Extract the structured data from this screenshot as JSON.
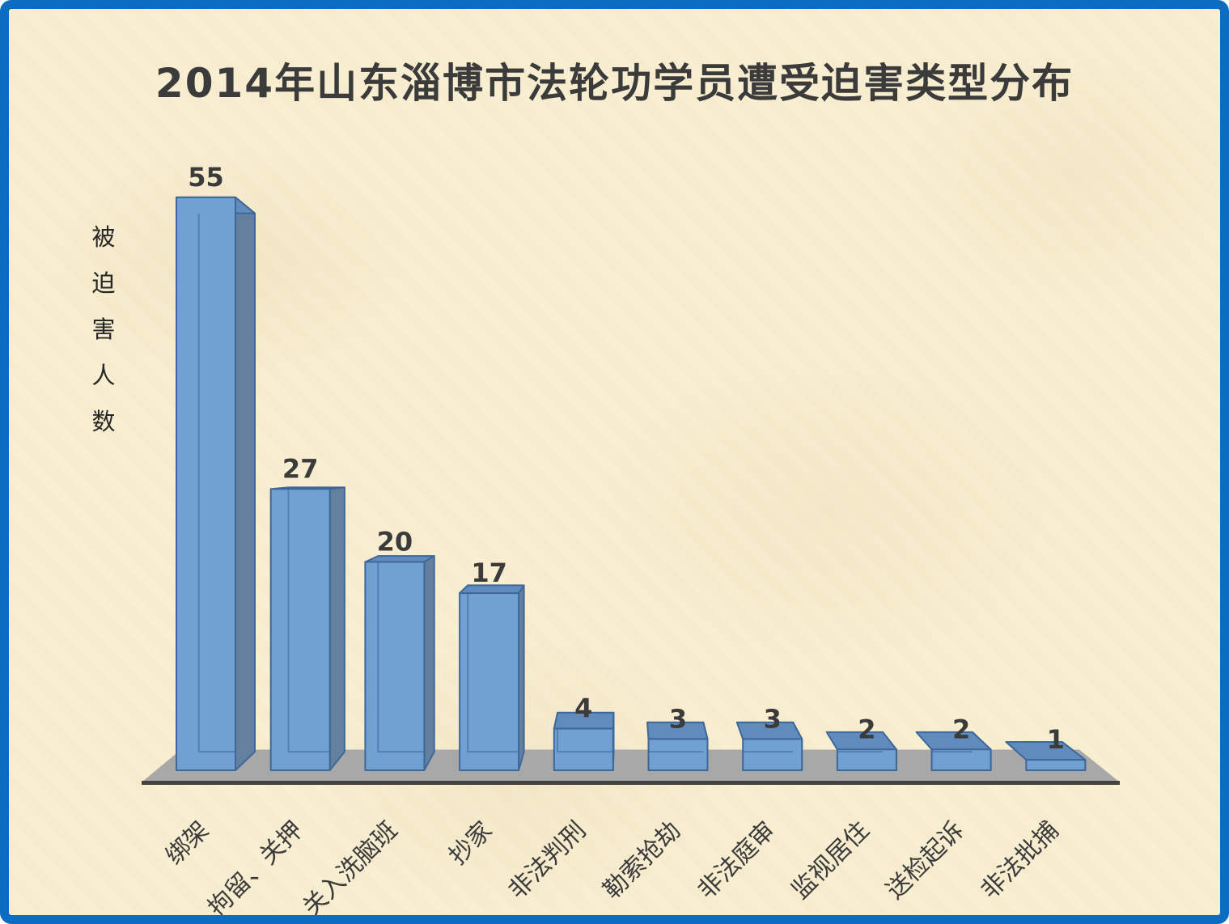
{
  "title": "2014年山东淄博市法轮功学员遭受迫害类型分布",
  "chart_data": {
    "type": "bar",
    "style": "3d-perspective-column",
    "title": "2014年山东淄博市法轮功学员遭受迫害类型分布",
    "ylabel": "被迫害人数",
    "xlabel": "",
    "categories": [
      "绑架",
      "拘留、关押",
      "关入洗脑班",
      "抄家",
      "非法判刑",
      "勒索抢劫",
      "非法庭审",
      "监视居住",
      "送检起诉",
      "非法批捕"
    ],
    "values": [
      55,
      27,
      20,
      17,
      4,
      3,
      3,
      2,
      2,
      1
    ],
    "data_labels": [
      55,
      27,
      20,
      17,
      4,
      3,
      3,
      2,
      2,
      1
    ],
    "ylim": [
      0,
      58
    ],
    "grid": false,
    "legend": false,
    "colors": {
      "bar_front": "#71A0D3",
      "bar_top": "#5F8CBC",
      "bar_side": "#64809F",
      "bar_edge": "#3D6899",
      "bar_inner_edge": "rgba(58,102,156,0.55)",
      "floor": "#A8A8A8",
      "axis_line": "#454341",
      "text": "#3B3B3B",
      "background": "#F8EDD0",
      "frame_border": "#0C6CBF"
    }
  }
}
